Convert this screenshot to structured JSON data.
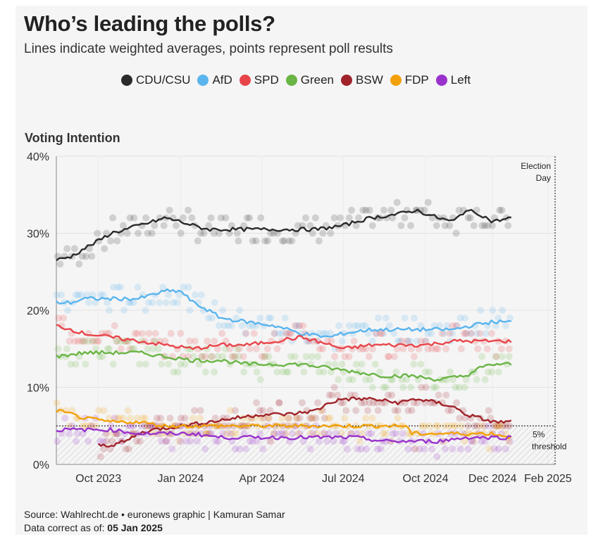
{
  "header": {
    "title": "Who’s leading the polls?",
    "subtitle": "Lines indicate weighted averages, points represent poll results"
  },
  "footer": {
    "source": "Source: Wahlrecht.de • euronews graphic | Kamuran Samar",
    "date_label": "Data correct as of: ",
    "date_value": "05 Jan 2025"
  },
  "chart_data": {
    "type": "line",
    "title": "Voting Intention",
    "ylabel": "Voting Intention",
    "ylim": [
      0,
      40
    ],
    "yticks": [
      "0%",
      "10%",
      "20%",
      "30%",
      "40%"
    ],
    "xticks": [
      "Oct 2023",
      "Jan 2024",
      "Apr 2024",
      "Jul 2024",
      "Oct 2024",
      "Dec 2024",
      "Feb 2025"
    ],
    "xlim": [
      "2023-08-15",
      "2025-02-23"
    ],
    "grid": true,
    "legend_position": "top",
    "annotations": {
      "election_day": "Election Day",
      "election_date": "2025-02-23",
      "threshold_label": "5% threshold",
      "threshold_value": 5
    },
    "series": [
      {
        "name": "CDU/CSU",
        "color": "#2b2b2b",
        "points": [
          [
            "2023-08-15",
            26.5
          ],
          [
            "2023-09-01",
            27
          ],
          [
            "2023-09-15",
            28
          ],
          [
            "2023-10-01",
            29
          ],
          [
            "2023-10-15",
            30
          ],
          [
            "2023-11-01",
            30.5
          ],
          [
            "2023-11-15",
            31
          ],
          [
            "2023-12-01",
            31.5
          ],
          [
            "2023-12-15",
            32
          ],
          [
            "2024-01-01",
            31.5
          ],
          [
            "2024-01-15",
            31
          ],
          [
            "2024-02-01",
            30.5
          ],
          [
            "2024-03-01",
            30.5
          ],
          [
            "2024-04-01",
            30.5
          ],
          [
            "2024-05-01",
            30.5
          ],
          [
            "2024-06-01",
            30.5
          ],
          [
            "2024-07-01",
            31
          ],
          [
            "2024-07-15",
            31.5
          ],
          [
            "2024-08-01",
            32
          ],
          [
            "2024-09-01",
            32.5
          ],
          [
            "2024-09-20",
            33
          ],
          [
            "2024-10-15",
            32
          ],
          [
            "2024-11-01",
            31.5
          ],
          [
            "2024-11-15",
            33
          ],
          [
            "2024-12-01",
            32.5
          ],
          [
            "2024-12-15",
            31.5
          ],
          [
            "2025-01-05",
            32
          ]
        ]
      },
      {
        "name": "AfD",
        "color": "#5ab4ee",
        "points": [
          [
            "2023-08-15",
            21
          ],
          [
            "2023-09-01",
            21
          ],
          [
            "2023-09-15",
            21.5
          ],
          [
            "2023-10-15",
            21.5
          ],
          [
            "2023-11-15",
            21.5
          ],
          [
            "2023-12-15",
            22.5
          ],
          [
            "2024-01-01",
            22.5
          ],
          [
            "2024-01-15",
            21
          ],
          [
            "2024-02-01",
            20
          ],
          [
            "2024-02-15",
            19
          ],
          [
            "2024-03-15",
            18.5
          ],
          [
            "2024-04-15",
            18
          ],
          [
            "2024-05-15",
            17
          ],
          [
            "2024-06-15",
            16.5
          ],
          [
            "2024-07-01",
            17
          ],
          [
            "2024-08-01",
            17.5
          ],
          [
            "2024-09-01",
            17.5
          ],
          [
            "2024-10-01",
            17.5
          ],
          [
            "2024-11-01",
            17.5
          ],
          [
            "2024-11-20",
            18
          ],
          [
            "2024-12-15",
            18.5
          ],
          [
            "2025-01-05",
            18.5
          ]
        ]
      },
      {
        "name": "SPD",
        "color": "#e8454a",
        "points": [
          [
            "2023-08-15",
            18
          ],
          [
            "2023-09-01",
            17.5
          ],
          [
            "2023-09-15",
            17
          ],
          [
            "2023-10-15",
            16.5
          ],
          [
            "2023-11-15",
            16
          ],
          [
            "2023-12-15",
            15.5
          ],
          [
            "2024-01-15",
            15
          ],
          [
            "2024-02-15",
            15.5
          ],
          [
            "2024-03-15",
            15.5
          ],
          [
            "2024-04-15",
            16
          ],
          [
            "2024-05-15",
            16.5
          ],
          [
            "2024-06-01",
            16
          ],
          [
            "2024-07-01",
            15
          ],
          [
            "2024-08-01",
            15.5
          ],
          [
            "2024-09-01",
            15.5
          ],
          [
            "2024-10-01",
            15.5
          ],
          [
            "2024-11-01",
            16
          ],
          [
            "2024-12-01",
            16
          ],
          [
            "2025-01-05",
            16
          ]
        ]
      },
      {
        "name": "Green",
        "color": "#6ab545",
        "points": [
          [
            "2023-08-15",
            14
          ],
          [
            "2023-09-15",
            14.5
          ],
          [
            "2023-10-15",
            14.5
          ],
          [
            "2023-11-15",
            14.5
          ],
          [
            "2023-12-15",
            14
          ],
          [
            "2024-01-15",
            13.5
          ],
          [
            "2024-02-15",
            13.5
          ],
          [
            "2024-03-15",
            13
          ],
          [
            "2024-04-15",
            13
          ],
          [
            "2024-05-15",
            13
          ],
          [
            "2024-06-15",
            12.5
          ],
          [
            "2024-07-15",
            12
          ],
          [
            "2024-08-15",
            11.5
          ],
          [
            "2024-09-15",
            11.5
          ],
          [
            "2024-10-15",
            11
          ],
          [
            "2024-11-15",
            11.5
          ],
          [
            "2024-12-01",
            12.5
          ],
          [
            "2024-12-15",
            13
          ],
          [
            "2025-01-05",
            13
          ]
        ]
      },
      {
        "name": "BSW",
        "color": "#a0232a",
        "points": [
          [
            "2023-10-01",
            2.5
          ],
          [
            "2023-10-15",
            2.5
          ],
          [
            "2023-11-01",
            3
          ],
          [
            "2023-11-15",
            4
          ],
          [
            "2023-12-01",
            4.5
          ],
          [
            "2024-01-01",
            5
          ],
          [
            "2024-02-01",
            5.5
          ],
          [
            "2024-03-01",
            6
          ],
          [
            "2024-04-01",
            6.5
          ],
          [
            "2024-05-01",
            6.5
          ],
          [
            "2024-06-01",
            7
          ],
          [
            "2024-06-15",
            8
          ],
          [
            "2024-07-01",
            8.5
          ],
          [
            "2024-08-01",
            8.5
          ],
          [
            "2024-09-01",
            8
          ],
          [
            "2024-09-20",
            8.5
          ],
          [
            "2024-10-15",
            8
          ],
          [
            "2024-11-01",
            7.5
          ],
          [
            "2024-11-15",
            6.5
          ],
          [
            "2024-12-01",
            6
          ],
          [
            "2024-12-15",
            5.5
          ],
          [
            "2025-01-05",
            5.5
          ]
        ]
      },
      {
        "name": "FDP",
        "color": "#f2a10a",
        "points": [
          [
            "2023-08-15",
            7
          ],
          [
            "2023-09-01",
            6.5
          ],
          [
            "2023-09-15",
            6
          ],
          [
            "2023-10-15",
            5.5
          ],
          [
            "2023-11-15",
            5.5
          ],
          [
            "2023-12-15",
            5
          ],
          [
            "2024-01-15",
            5
          ],
          [
            "2024-02-15",
            5
          ],
          [
            "2024-03-15",
            5
          ],
          [
            "2024-04-15",
            5
          ],
          [
            "2024-05-15",
            5
          ],
          [
            "2024-06-15",
            5
          ],
          [
            "2024-07-15",
            5
          ],
          [
            "2024-08-15",
            5
          ],
          [
            "2024-09-10",
            5
          ],
          [
            "2024-09-15",
            4
          ],
          [
            "2024-10-15",
            4
          ],
          [
            "2024-11-15",
            4
          ],
          [
            "2024-12-15",
            4
          ],
          [
            "2025-01-05",
            3.5
          ]
        ]
      },
      {
        "name": "Left",
        "color": "#9932cc",
        "points": [
          [
            "2023-08-15",
            4.5
          ],
          [
            "2023-09-15",
            4.5
          ],
          [
            "2023-10-15",
            4.5
          ],
          [
            "2023-11-15",
            4
          ],
          [
            "2023-12-15",
            4
          ],
          [
            "2024-01-15",
            4
          ],
          [
            "2024-02-15",
            3.5
          ],
          [
            "2024-03-15",
            3.5
          ],
          [
            "2024-04-15",
            3.5
          ],
          [
            "2024-05-15",
            3.5
          ],
          [
            "2024-06-15",
            3.5
          ],
          [
            "2024-07-15",
            3.5
          ],
          [
            "2024-08-15",
            3
          ],
          [
            "2024-09-15",
            3
          ],
          [
            "2024-10-15",
            3
          ],
          [
            "2024-11-15",
            3.5
          ],
          [
            "2024-12-15",
            3.5
          ],
          [
            "2025-01-05",
            3.5
          ]
        ]
      }
    ]
  }
}
